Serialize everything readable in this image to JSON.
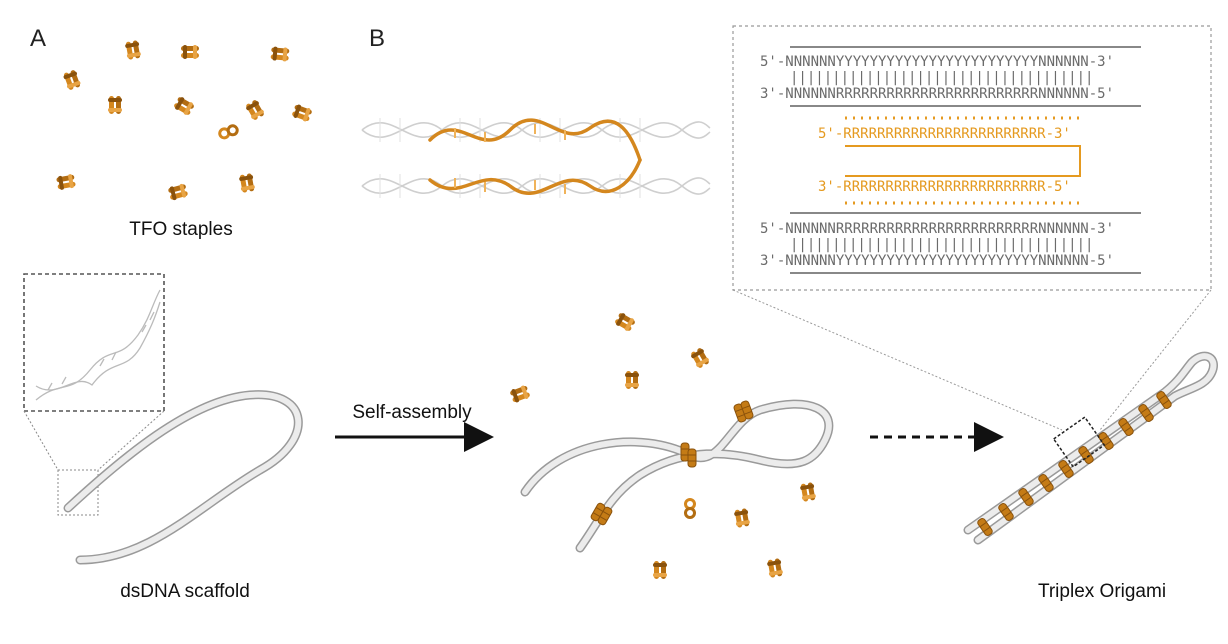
{
  "panel_labels": {
    "a": "A",
    "b": "B"
  },
  "captions": {
    "tfo_staples": "TFO staples",
    "dsdna_scaffold": "dsDNA scaffold",
    "self_assembly": "Self-assembly",
    "triplex_origami": "Triplex Origami"
  },
  "sequences": {
    "top_duplex_strand_1": "5'-NNNNNNYYYYYYYYYYYYYYYYYYYYYYYYNNNNNN-3'",
    "top_duplex_pairs": "||||||||||||||||||||||||||||||||||||",
    "top_duplex_strand_2": "3'-NNNNNNRRRRRRRRRRRRRRRRRRRRRRRRNNNNNN-5'",
    "tfo_strand_1": "5'-RRRRRRRRRRRRRRRRRRRRRRRR-3'",
    "tfo_strand_2": "3'-RRRRRRRRRRRRRRRRRRRRRRRR-5'",
    "bottom_duplex_strand_1": "5'-NNNNNNRRRRRRRRRRRRRRRRRRRRRRRRNNNNNN-3'",
    "bottom_duplex_pairs": "||||||||||||||||||||||||||||||||||||",
    "bottom_duplex_strand_2": "3'-NNNNNNYYYYYYYYYYYYYYYYYYYYYYYYNNNNNN-5'"
  },
  "colors": {
    "tfo_orange": "#d4871e",
    "tfo_light": "#f0b35a",
    "scaffold_gray": "#dcdcdc",
    "text_gray": "#6b6b6b",
    "text_orange": "#e59a20"
  }
}
